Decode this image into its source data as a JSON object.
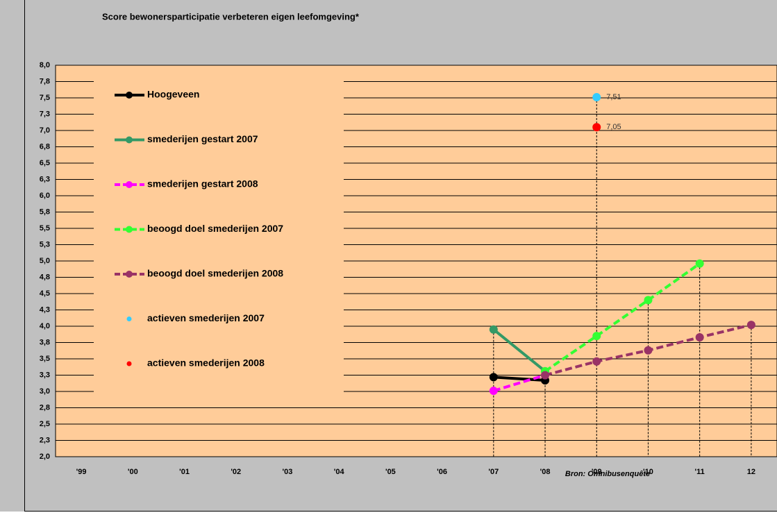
{
  "chart_data": {
    "type": "line",
    "subtitle": "Score bewonersparticipatie verbeteren eigen leefomgeving*",
    "source": "Bron: Omnibusenquête",
    "categories": [
      "'99",
      "'00",
      "'01",
      "'02",
      "'03",
      "'04",
      "'05",
      "'06",
      "'07",
      "'08",
      "'09",
      "'10",
      "'11",
      "12"
    ],
    "ylim": [
      2.0,
      8.0
    ],
    "yticks": [
      {
        "value": 2.0,
        "label": "2,0"
      },
      {
        "value": 2.25,
        "label": "2,3"
      },
      {
        "value": 2.5,
        "label": "2,5"
      },
      {
        "value": 2.75,
        "label": "2,8"
      },
      {
        "value": 3.0,
        "label": "3,0"
      },
      {
        "value": 3.25,
        "label": "3,3"
      },
      {
        "value": 3.5,
        "label": "3,5"
      },
      {
        "value": 3.75,
        "label": "3,8"
      },
      {
        "value": 4.0,
        "label": "4,0"
      },
      {
        "value": 4.25,
        "label": "4,3"
      },
      {
        "value": 4.5,
        "label": "4,5"
      },
      {
        "value": 4.75,
        "label": "4,8"
      },
      {
        "value": 5.0,
        "label": "5,0"
      },
      {
        "value": 5.25,
        "label": "5,3"
      },
      {
        "value": 5.5,
        "label": "5,5"
      },
      {
        "value": 5.75,
        "label": "5,8"
      },
      {
        "value": 6.0,
        "label": "6,0"
      },
      {
        "value": 6.25,
        "label": "6,3"
      },
      {
        "value": 6.5,
        "label": "6,5"
      },
      {
        "value": 6.75,
        "label": "6,8"
      },
      {
        "value": 7.0,
        "label": "7,0"
      },
      {
        "value": 7.25,
        "label": "7,3"
      },
      {
        "value": 7.5,
        "label": "7,5"
      },
      {
        "value": 7.75,
        "label": "7,8"
      },
      {
        "value": 8.0,
        "label": "8,0"
      }
    ],
    "grid": true,
    "series": [
      {
        "name": "Hoogeveen",
        "color": "#000000",
        "dashed": false,
        "values": [
          null,
          null,
          null,
          null,
          null,
          null,
          null,
          null,
          3.22,
          3.17,
          null,
          null,
          null,
          null
        ]
      },
      {
        "name": "smederijen gestart 2007",
        "color": "#339966",
        "dashed": false,
        "values": [
          null,
          null,
          null,
          null,
          null,
          null,
          null,
          null,
          3.95,
          3.31,
          null,
          null,
          null,
          null
        ]
      },
      {
        "name": "smederijen gestart 2008",
        "color": "#ff00ff",
        "dashed": true,
        "values": [
          null,
          null,
          null,
          null,
          null,
          null,
          null,
          null,
          3.01,
          3.25,
          null,
          null,
          null,
          null
        ]
      },
      {
        "name": "beoogd doel smederijen 2007",
        "color": "#33ff33",
        "dashed": true,
        "values": [
          null,
          null,
          null,
          null,
          null,
          null,
          null,
          null,
          null,
          3.31,
          3.85,
          4.4,
          4.96,
          null
        ]
      },
      {
        "name": "beoogd doel smederijen 2008",
        "color": "#993366",
        "dashed": true,
        "values": [
          null,
          null,
          null,
          null,
          null,
          null,
          null,
          null,
          null,
          3.25,
          3.46,
          3.63,
          3.83,
          4.02
        ]
      },
      {
        "name": "actieven smederijen 2007",
        "color": "#33ccff",
        "markers_only": true,
        "values": [
          null,
          null,
          null,
          null,
          null,
          null,
          null,
          null,
          null,
          null,
          7.51,
          null,
          null,
          null
        ],
        "value_labels": [
          null,
          null,
          null,
          null,
          null,
          null,
          null,
          null,
          null,
          null,
          "7,51",
          null,
          null,
          null
        ]
      },
      {
        "name": "actieven smederijen 2008",
        "color": "#ff0000",
        "markers_only": true,
        "values": [
          null,
          null,
          null,
          null,
          null,
          null,
          null,
          null,
          null,
          null,
          7.05,
          null,
          null,
          null
        ],
        "value_labels": [
          null,
          null,
          null,
          null,
          null,
          null,
          null,
          null,
          null,
          null,
          "7,05",
          null,
          null,
          null
        ]
      }
    ]
  }
}
